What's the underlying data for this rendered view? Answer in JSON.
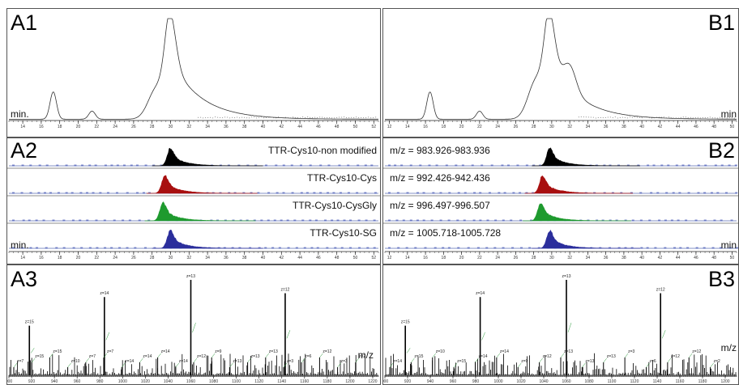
{
  "panels": {
    "A1": {
      "label": "A1",
      "unit": "min.",
      "x_ticks": [
        14,
        16,
        18,
        20,
        22,
        24,
        26,
        28,
        30,
        32,
        34,
        36,
        38,
        40,
        42,
        44,
        46,
        48,
        50,
        52
      ]
    },
    "B1": {
      "label": "B1",
      "unit": "min",
      "x_ticks": [
        12,
        14,
        16,
        18,
        20,
        22,
        24,
        26,
        28,
        30,
        32,
        34,
        36,
        38,
        40,
        42,
        44,
        46,
        48,
        50
      ]
    },
    "A2": {
      "label": "A2",
      "unit": "min.",
      "x_ticks": [
        14,
        16,
        18,
        20,
        22,
        24,
        26,
        28,
        30,
        32,
        34,
        36,
        38,
        40,
        42,
        44,
        46,
        48,
        50,
        52
      ]
    },
    "B2": {
      "label": "B2",
      "unit": "min",
      "x_ticks": [
        12,
        14,
        16,
        18,
        20,
        22,
        24,
        26,
        28,
        30,
        32,
        34,
        36,
        38,
        40,
        42,
        44,
        46,
        48,
        50
      ]
    },
    "A3": {
      "label": "A3",
      "unit": "m/z",
      "x_ticks": [
        900,
        920,
        940,
        960,
        980,
        1000,
        1020,
        1040,
        1060,
        1080,
        1100,
        1120,
        1140,
        1160,
        1180,
        1200,
        1220
      ]
    },
    "B3": {
      "label": "B3",
      "unit": "m/z",
      "x_ticks": [
        900,
        920,
        940,
        960,
        980,
        1000,
        1020,
        1040,
        1060,
        1080,
        1100,
        1120,
        1140,
        1160,
        1180,
        1200
      ]
    }
  },
  "chart_data": [
    {
      "panel": "A1",
      "type": "line",
      "color": "#333333",
      "xlim": [
        12.5,
        52.5
      ],
      "peaks": [
        {
          "x": 17.3,
          "y": 0.27
        },
        {
          "x": 21.5,
          "y": 0.08
        },
        {
          "x": 30.0,
          "y": 1.0,
          "shoulder_left": [
            28.5,
            0.55
          ]
        }
      ]
    },
    {
      "panel": "B1",
      "type": "line",
      "color": "#333333",
      "xlim": [
        11.5,
        50.5
      ],
      "peaks": [
        {
          "x": 16.5,
          "y": 0.27
        },
        {
          "x": 22.0,
          "y": 0.08
        },
        {
          "x": 29.8,
          "y": 1.0,
          "shoulder_left": [
            28.3,
            0.7
          ],
          "shoulder_right": [
            32.0,
            0.4
          ]
        }
      ]
    },
    {
      "panel": "A2",
      "type": "area",
      "xlim": [
        12.5,
        52.5
      ],
      "series": [
        {
          "name": "TTR-Cys10-non modified",
          "color": "#000000",
          "peak_x": 30.0,
          "height": 1.0
        },
        {
          "name": "TTR-Cys10-Cys",
          "color": "#a80f0f",
          "peak_x": 29.4,
          "height": 1.0
        },
        {
          "name": "TTR-Cys10-CysGly",
          "color": "#1e9a2e",
          "peak_x": 29.2,
          "height": 1.0
        },
        {
          "name": "TTR-Cys10-SG",
          "color": "#2b2e9c",
          "peak_x": 30.0,
          "height": 1.0
        }
      ]
    },
    {
      "panel": "B2",
      "type": "area",
      "xlim": [
        11.5,
        50.5
      ],
      "series": [
        {
          "name": "m/z = 983.926-983.936",
          "color": "#000000",
          "peak_x": 29.8,
          "height": 1.0
        },
        {
          "name": "m/z = 992.426-942.436",
          "color": "#a80f0f",
          "peak_x": 29.0,
          "height": 1.0
        },
        {
          "name": "m/z = 996.497-996.507",
          "color": "#1e9a2e",
          "peak_x": 28.8,
          "height": 1.0
        },
        {
          "name": "m/z = 1005.718-1005.728",
          "color": "#2b2e9c",
          "peak_x": 29.8,
          "height": 1.0
        }
      ]
    },
    {
      "panel": "A3",
      "type": "bar",
      "xlim": [
        900,
        1225
      ],
      "major_peaks": [
        {
          "x": 918,
          "y": 0.52,
          "label": "z=15"
        },
        {
          "x": 984,
          "y": 0.82,
          "label": "z=14"
        },
        {
          "x": 1060,
          "y": 1.0,
          "label": "z=13"
        },
        {
          "x": 1143,
          "y": 0.86,
          "label": "z=12"
        }
      ],
      "minor_labels": [
        "z=7",
        "z=15",
        "z=15",
        "z=10",
        "z=7",
        "z=7",
        "z=14",
        "z=14",
        "z=14",
        "z=14",
        "z=12",
        "z=9",
        "z=13",
        "z=13",
        "z=13",
        "z=3",
        "z=6",
        "z=12",
        "z=3",
        "z=2"
      ]
    },
    {
      "panel": "B3",
      "type": "bar",
      "xlim": [
        900,
        1210
      ],
      "major_peaks": [
        {
          "x": 918,
          "y": 0.52,
          "label": "z=15"
        },
        {
          "x": 984,
          "y": 0.82,
          "label": "z=14"
        },
        {
          "x": 1060,
          "y": 1.0,
          "label": "z=13"
        },
        {
          "x": 1143,
          "y": 0.86,
          "label": "z=12"
        }
      ],
      "minor_labels": [
        "z=14",
        "z=15",
        "z=10",
        "z=15",
        "z=14",
        "z=14",
        "z=9",
        "z=12",
        "z=13",
        "z=13",
        "z=13",
        "z=3",
        "z=6",
        "z=12",
        "z=12",
        "z=2"
      ]
    }
  ]
}
